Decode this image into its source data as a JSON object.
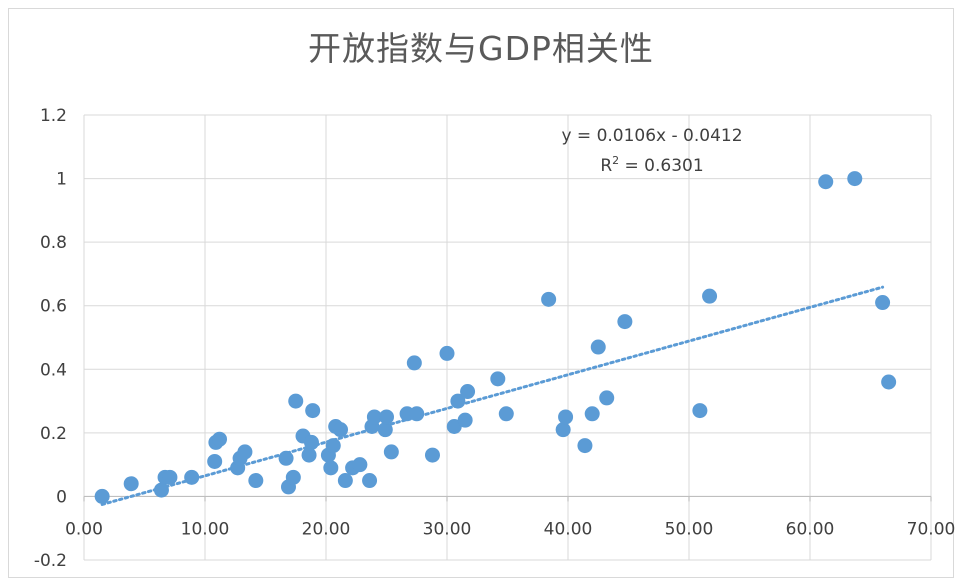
{
  "chart_data": {
    "type": "scatter",
    "title": "开放指数与GDP相关性",
    "xlabel": "",
    "ylabel": "",
    "xlim": [
      0,
      70
    ],
    "ylim": [
      -0.2,
      1.2
    ],
    "x_ticks": [
      "0.00",
      "10.00",
      "20.00",
      "30.00",
      "40.00",
      "50.00",
      "60.00",
      "70.00"
    ],
    "y_ticks": [
      "1.2",
      "1",
      "0.8",
      "0.6",
      "0.4",
      "0.2",
      "0",
      "-0.2"
    ],
    "grid": true,
    "marker_color": "#5b9bd5",
    "trendline": {
      "type": "linear",
      "slope": 0.0106,
      "intercept": -0.0412,
      "x_range": [
        1.5,
        66
      ],
      "equation": "y = 0.0106x - 0.0412",
      "r2_prefix": "R",
      "r2_sup": "2",
      "r2_suffix": " = 0.6301"
    },
    "points": [
      [
        1.5,
        0.0
      ],
      [
        3.9,
        0.04
      ],
      [
        6.4,
        0.02
      ],
      [
        6.7,
        0.06
      ],
      [
        7.1,
        0.06
      ],
      [
        8.9,
        0.06
      ],
      [
        10.8,
        0.11
      ],
      [
        10.9,
        0.17
      ],
      [
        11.2,
        0.18
      ],
      [
        12.7,
        0.09
      ],
      [
        12.9,
        0.12
      ],
      [
        13.3,
        0.14
      ],
      [
        14.2,
        0.05
      ],
      [
        16.7,
        0.12
      ],
      [
        16.9,
        0.03
      ],
      [
        17.3,
        0.06
      ],
      [
        17.5,
        0.3
      ],
      [
        18.1,
        0.19
      ],
      [
        18.6,
        0.13
      ],
      [
        18.8,
        0.17
      ],
      [
        18.9,
        0.27
      ],
      [
        20.2,
        0.13
      ],
      [
        20.4,
        0.09
      ],
      [
        20.6,
        0.16
      ],
      [
        20.8,
        0.22
      ],
      [
        21.2,
        0.21
      ],
      [
        21.6,
        0.05
      ],
      [
        22.2,
        0.09
      ],
      [
        22.8,
        0.1
      ],
      [
        23.6,
        0.05
      ],
      [
        23.8,
        0.22
      ],
      [
        24.0,
        0.25
      ],
      [
        24.9,
        0.21
      ],
      [
        25.0,
        0.25
      ],
      [
        25.4,
        0.14
      ],
      [
        26.7,
        0.26
      ],
      [
        27.3,
        0.42
      ],
      [
        27.5,
        0.26
      ],
      [
        28.8,
        0.13
      ],
      [
        30.0,
        0.45
      ],
      [
        30.6,
        0.22
      ],
      [
        30.9,
        0.3
      ],
      [
        31.5,
        0.24
      ],
      [
        31.7,
        0.33
      ],
      [
        34.2,
        0.37
      ],
      [
        34.9,
        0.26
      ],
      [
        38.4,
        0.62
      ],
      [
        39.6,
        0.21
      ],
      [
        39.8,
        0.25
      ],
      [
        41.4,
        0.16
      ],
      [
        42.0,
        0.26
      ],
      [
        42.5,
        0.47
      ],
      [
        43.2,
        0.31
      ],
      [
        44.7,
        0.55
      ],
      [
        50.9,
        0.27
      ],
      [
        51.7,
        0.63
      ],
      [
        61.3,
        0.99
      ],
      [
        63.7,
        1.0
      ],
      [
        66.0,
        0.61
      ],
      [
        66.5,
        0.36
      ]
    ]
  }
}
